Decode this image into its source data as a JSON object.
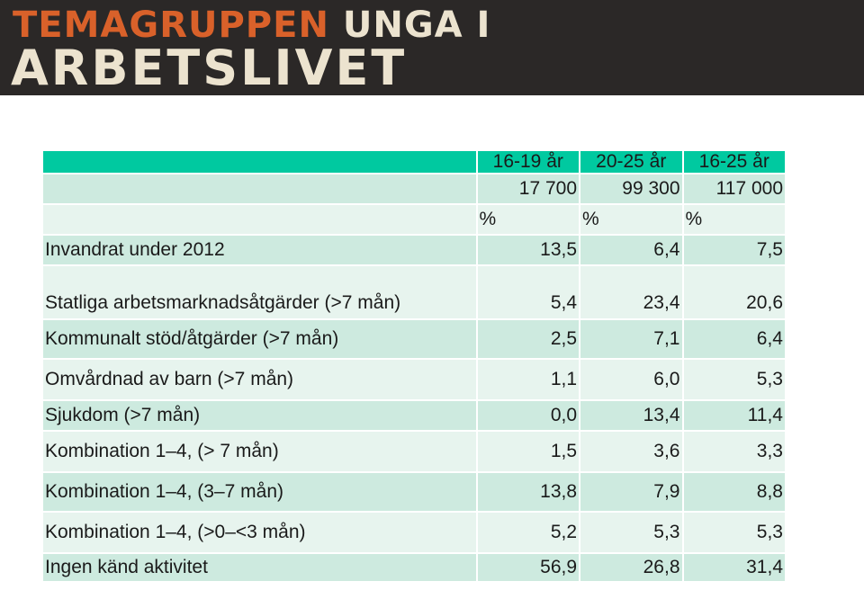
{
  "logo": {
    "line1_part1": "TEMAGRUPPEN",
    "line1_part2": "UNGA I",
    "line2": "ARBETSLIVET",
    "colors": {
      "orange": "#d9612a",
      "cream": "#ece3cf",
      "background": "#2b2827"
    }
  },
  "table": {
    "columns": [
      "16-19 år",
      "20-25 år",
      "16-25 år"
    ],
    "totals": [
      "17 700",
      "99 300",
      "117 000"
    ],
    "units": [
      "%",
      "%",
      "%"
    ],
    "rows": [
      {
        "label": "Invandrat under 2012",
        "values": [
          "13,5",
          "6,4",
          "7,5"
        ]
      },
      {
        "label": "Statliga arbetsmarknadsåtgärder (>7 mån)",
        "values": [
          "5,4",
          "23,4",
          "20,6"
        ]
      },
      {
        "label": "Kommunalt stöd/åtgärder (>7 mån)",
        "values": [
          "2,5",
          "7,1",
          "6,4"
        ]
      },
      {
        "label": "Omvårdnad av barn  (>7 mån)",
        "values": [
          "1,1",
          "6,0",
          "5,3"
        ]
      },
      {
        "label": "Sjukdom (>7 mån)",
        "values": [
          "0,0",
          "13,4",
          "11,4"
        ]
      },
      {
        "label": "Kombination 1–4, (> 7 mån)",
        "values": [
          "1,5",
          "3,6",
          "3,3"
        ]
      },
      {
        "label": "Kombination 1–4, (3–7 mån)",
        "values": [
          "13,8",
          "7,9",
          "8,8"
        ]
      },
      {
        "label": "Kombination 1–4, (>0–<3 mån)",
        "values": [
          "5,2",
          "5,3",
          "5,3"
        ]
      },
      {
        "label": "Ingen känd aktivitet",
        "values": [
          "56,9",
          "26,8",
          "31,4"
        ]
      }
    ],
    "colors": {
      "header": "#00c9a0",
      "row_dark": "#cdeadf",
      "row_light": "#e7f4ee"
    }
  }
}
